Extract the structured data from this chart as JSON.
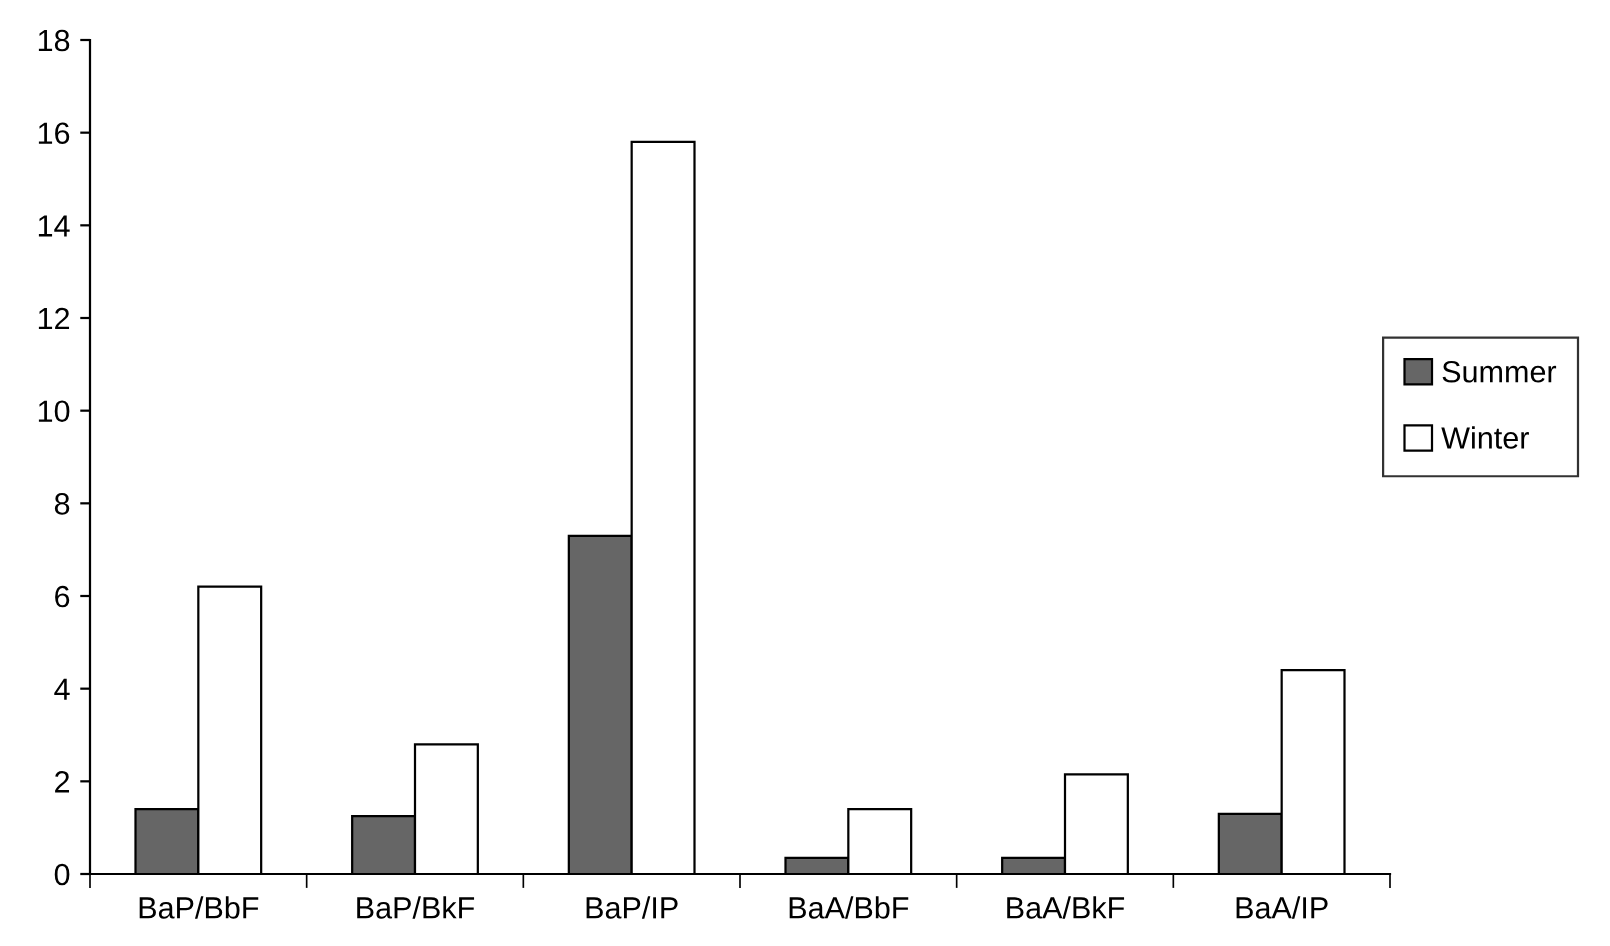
{
  "chart_data": {
    "type": "bar",
    "categories": [
      "BaP/BbF",
      "BaP/BkF",
      "BaP/IP",
      "BaA/BbF",
      "BaA/BkF",
      "BaA/IP"
    ],
    "series": [
      {
        "name": "Summer",
        "color": "#666666",
        "values": [
          1.4,
          1.25,
          7.3,
          0.35,
          0.35,
          1.3
        ]
      },
      {
        "name": "Winter",
        "color": "#ffffff",
        "values": [
          6.2,
          2.8,
          15.8,
          1.4,
          2.15,
          4.4
        ]
      }
    ],
    "ylim": [
      0,
      18
    ],
    "yticks": [
      0,
      2,
      4,
      6,
      8,
      10,
      12,
      14,
      16,
      18
    ],
    "grid": false,
    "legend": "right"
  }
}
